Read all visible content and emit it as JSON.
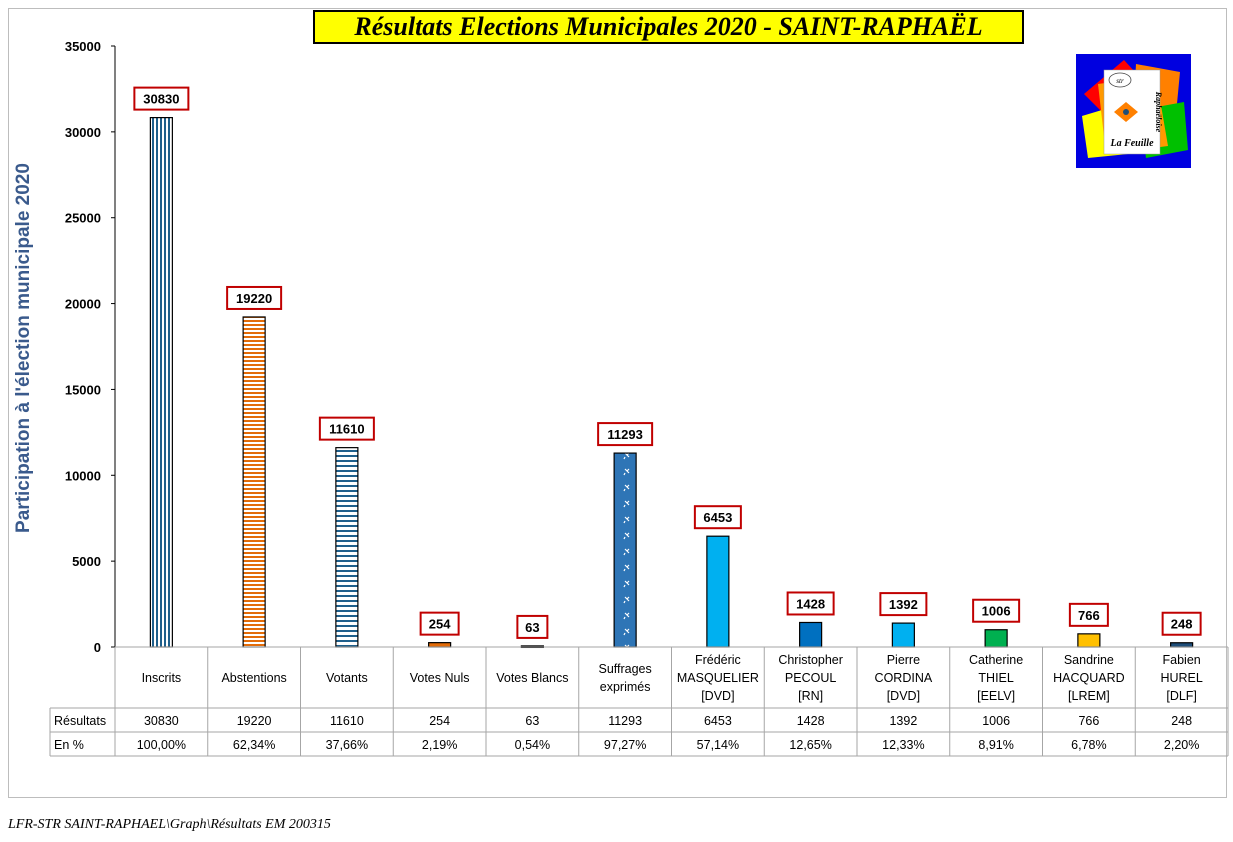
{
  "title": "Résultats Elections Municipales 2020 - SAINT-RAPHAËL",
  "footer": "LFR-STR SAINT-RAPHAEL\\Graph\\Résultats EM 200315",
  "logo": {
    "top_text": "str",
    "side_text": "Raphaëloise",
    "bottom_text": "La Feuille"
  },
  "colors": {
    "inscrits": "#1f5f8b",
    "abstentions": "#e36c09",
    "votants": "#1f5f8b",
    "nuls": "#e36c09",
    "blancs": "#7f6000",
    "suffrages": "#2e75b6",
    "masquelier": "#00b0f0",
    "pecoul": "#0070c0",
    "cordina": "#00b0f0",
    "thiel": "#00b050",
    "hacquard": "#ffc000",
    "hurel": "#1f4e79",
    "label_border": "#c00000",
    "axis_title": "#3a5a8c"
  },
  "chart_data": {
    "type": "bar",
    "ylabel": "Participation à l'élection municipale 2020",
    "ylim": [
      0,
      35000
    ],
    "yticks": [
      "0",
      "5000",
      "10000",
      "15000",
      "20000",
      "25000",
      "30000",
      "35000"
    ],
    "categories": [
      [
        "Inscrits"
      ],
      [
        "Abstentions"
      ],
      [
        "Votants"
      ],
      [
        "Votes Nuls"
      ],
      [
        "Votes Blancs"
      ],
      [
        "Suffrages",
        "exprimés"
      ],
      [
        "Frédéric",
        "MASQUELIER",
        "[DVD]"
      ],
      [
        "Christopher",
        "PECOUL",
        "[RN]"
      ],
      [
        "Pierre",
        "CORDINA",
        "[DVD]"
      ],
      [
        "Catherine",
        "THIEL",
        "[EELV]"
      ],
      [
        "Sandrine",
        "HACQUARD",
        "[LREM]"
      ],
      [
        "Fabien",
        "HUREL",
        "[DLF]"
      ]
    ],
    "values": [
      30830,
      19220,
      11610,
      254,
      63,
      11293,
      6453,
      1428,
      1392,
      1006,
      766,
      248
    ],
    "styles": [
      "vstripe",
      "hstripe-orange",
      "hstripe-blue",
      "solid",
      "solid",
      "pattern",
      "solid",
      "solid",
      "solid",
      "solid",
      "solid",
      "solid"
    ],
    "color_keys": [
      "inscrits",
      "abstentions",
      "votants",
      "nuls",
      "blancs",
      "suffrages",
      "masquelier",
      "pecoul",
      "cordina",
      "thiel",
      "hacquard",
      "hurel"
    ],
    "table": {
      "row_labels": [
        "Résultats",
        "En %"
      ],
      "rows": [
        [
          "30830",
          "19220",
          "11610",
          "254",
          "63",
          "11293",
          "6453",
          "1428",
          "1392",
          "1006",
          "766",
          "248"
        ],
        [
          "100,00%",
          "62,34%",
          "37,66%",
          "2,19%",
          "0,54%",
          "97,27%",
          "57,14%",
          "12,65%",
          "12,33%",
          "8,91%",
          "6,78%",
          "2,20%"
        ]
      ]
    }
  }
}
